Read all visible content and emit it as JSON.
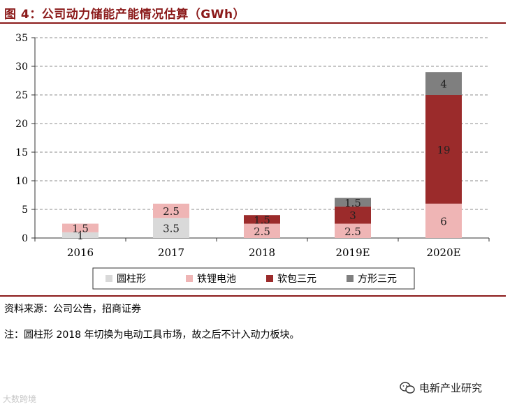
{
  "title": "图 4：公司动力储能产能情况估算（GWh）",
  "source": "资料来源：公司公告，招商证券",
  "footnote": "注：圆柱形 2018 年切换为电动工具市场，故之后不计入动力板块。",
  "brand": "电新产业研究",
  "watermark": "大数跨境",
  "colors": {
    "title": "#8b1a1a",
    "cylindrical": "#d9d9d9",
    "lfp": "#efb5b5",
    "pouch": "#9b2b2b",
    "prismatic": "#7f7f7f"
  },
  "chart_data": {
    "type": "bar",
    "stacked": true,
    "categories": [
      "2016",
      "2017",
      "2018",
      "2019E",
      "2020E"
    ],
    "ylim": [
      0,
      35
    ],
    "yticks": [
      "0",
      "5",
      "10",
      "15",
      "20",
      "25",
      "30",
      "35"
    ],
    "series": [
      {
        "name": "圆柱形",
        "color": "#d9d9d9",
        "values": [
          1,
          3.5,
          0,
          0,
          0
        ],
        "labels": [
          "1",
          "3.5",
          "",
          "",
          ""
        ]
      },
      {
        "name": "铁锂电池",
        "color": "#efb5b5",
        "values": [
          1.5,
          2.5,
          2.5,
          2.5,
          6
        ],
        "labels": [
          "1.5",
          "2.5",
          "2.5",
          "2.5",
          "6"
        ]
      },
      {
        "name": "软包三元",
        "color": "#9b2b2b",
        "values": [
          0,
          0,
          1.5,
          3,
          19
        ],
        "labels": [
          "",
          "",
          "1.5",
          "3",
          "19"
        ]
      },
      {
        "name": "方形三元",
        "color": "#7f7f7f",
        "values": [
          0,
          0,
          0,
          1.5,
          4
        ],
        "labels": [
          "",
          "",
          "",
          "1.5",
          "4"
        ]
      }
    ],
    "legend_position": "bottom"
  }
}
